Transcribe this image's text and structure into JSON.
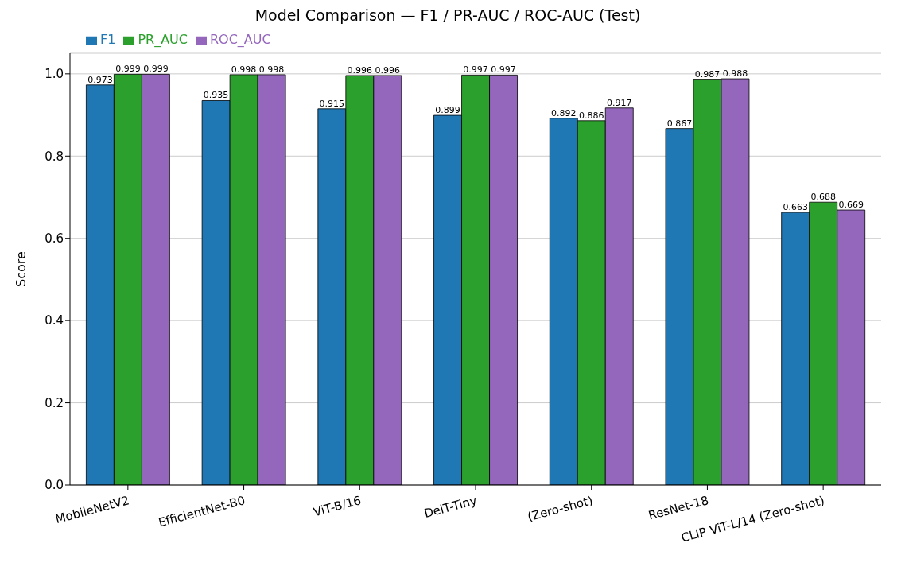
{
  "chart_data": {
    "type": "bar",
    "title": "Model Comparison — F1 / PR-AUC / ROC-AUC (Test)",
    "ylabel": "Score",
    "categories": [
      "MobileNetV2",
      "EfficientNet-B0",
      "ViT-B/16",
      "DeiT-Tiny",
      "(Zero-shot)",
      "ResNet-18",
      "CLIP ViT-L/14 (Zero-shot)"
    ],
    "series": [
      {
        "name": "F1",
        "color": "#1f77b4",
        "values": [
          0.973,
          0.935,
          0.915,
          0.899,
          0.892,
          0.867,
          0.663
        ]
      },
      {
        "name": "PR_AUC",
        "color": "#2ca02c",
        "values": [
          0.999,
          0.998,
          0.996,
          0.997,
          0.886,
          0.987,
          0.688
        ]
      },
      {
        "name": "ROC_AUC",
        "color": "#9467bd",
        "values": [
          0.999,
          0.998,
          0.996,
          0.997,
          0.917,
          0.988,
          0.669
        ]
      }
    ],
    "ylim": [
      0,
      1.05
    ],
    "yticks": [
      {
        "value": 0,
        "label": "0.0"
      },
      0.2,
      0.4,
      0.6,
      0.8,
      {
        "value": 1,
        "label": "1.0"
      }
    ],
    "grid": "y",
    "legend": "top left",
    "data_labels": true
  }
}
